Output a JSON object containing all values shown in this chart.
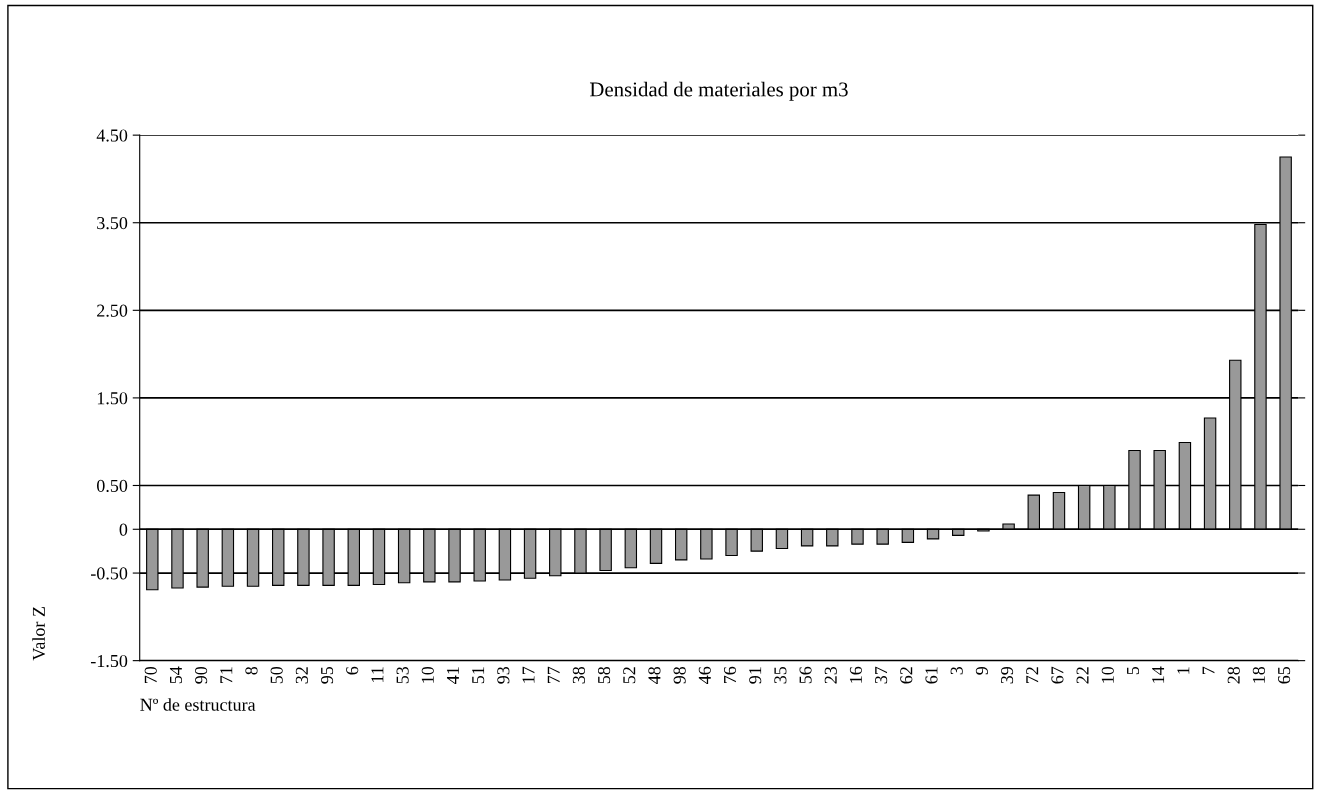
{
  "chart_data": {
    "type": "bar",
    "title": "Densidad de materiales por m3",
    "xlabel": "Nº de estructura",
    "ylabel": "Valor Z",
    "categories": [
      "70",
      "54",
      "90",
      "71",
      "8",
      "50",
      "32",
      "95",
      "6",
      "11",
      "53",
      "10",
      "41",
      "51",
      "93",
      "17",
      "77",
      "38",
      "58",
      "52",
      "48",
      "98",
      "46",
      "76",
      "91",
      "35",
      "56",
      "23",
      "16",
      "37",
      "62",
      "61",
      "3",
      "9",
      "39",
      "72",
      "67",
      "22",
      "10",
      "5",
      "14",
      "1",
      "7",
      "28",
      "18",
      "65"
    ],
    "values": [
      -0.69,
      -0.67,
      -0.66,
      -0.65,
      -0.65,
      -0.64,
      -0.64,
      -0.64,
      -0.64,
      -0.63,
      -0.61,
      -0.6,
      -0.6,
      -0.59,
      -0.58,
      -0.56,
      -0.53,
      -0.5,
      -0.47,
      -0.44,
      -0.39,
      -0.35,
      -0.34,
      -0.3,
      -0.25,
      -0.22,
      -0.19,
      -0.19,
      -0.17,
      -0.17,
      -0.15,
      -0.11,
      -0.07,
      -0.02,
      0.06,
      0.39,
      0.42,
      0.5,
      0.5,
      0.9,
      0.9,
      0.99,
      1.27,
      1.93,
      3.48,
      4.25
    ],
    "color": "#999999",
    "ylim": [
      -1.5,
      4.5
    ],
    "yticks": [
      {
        "value": 4.5,
        "label": "4.50"
      },
      {
        "value": 3.5,
        "label": "3.50"
      },
      {
        "value": 2.5,
        "label": "2.50"
      },
      {
        "value": 1.5,
        "label": "1.50"
      },
      {
        "value": 0.5,
        "label": "0.50"
      },
      0,
      {
        "value": -0.5,
        "label": "-0.50"
      },
      {
        "value": -1.5,
        "label": "-1.50"
      }
    ],
    "grid": "y",
    "legend": false
  }
}
